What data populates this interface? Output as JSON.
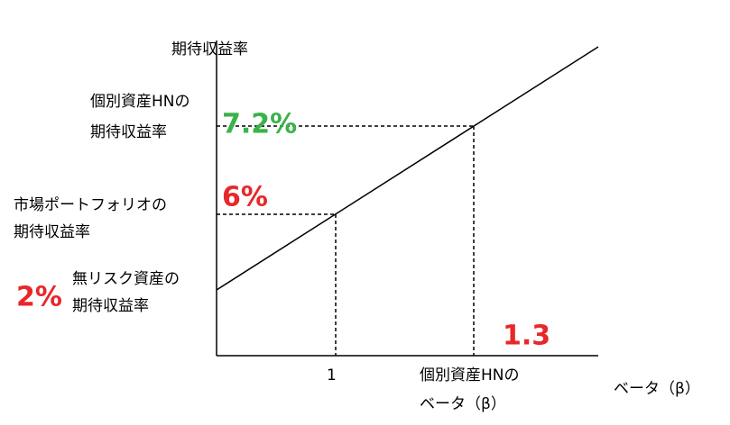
{
  "y_axis_title": "期待収益率",
  "x_axis_title": "ベータ（β）",
  "asset_hn_return": {
    "lines": [
      "個別資産HNの",
      "期待収益率"
    ],
    "value": "7.2%"
  },
  "market_return": {
    "lines": [
      "市場ポートフォリオの",
      "期待収益率"
    ],
    "value": "6%"
  },
  "risk_free_return": {
    "lines": [
      "無リスク資産の",
      "期待収益率"
    ],
    "value": "2%"
  },
  "market_beta": "1",
  "asset_hn_beta": {
    "lines": [
      "個別資産HNの",
      "ベータ（β）"
    ],
    "value": "1.3"
  }
}
